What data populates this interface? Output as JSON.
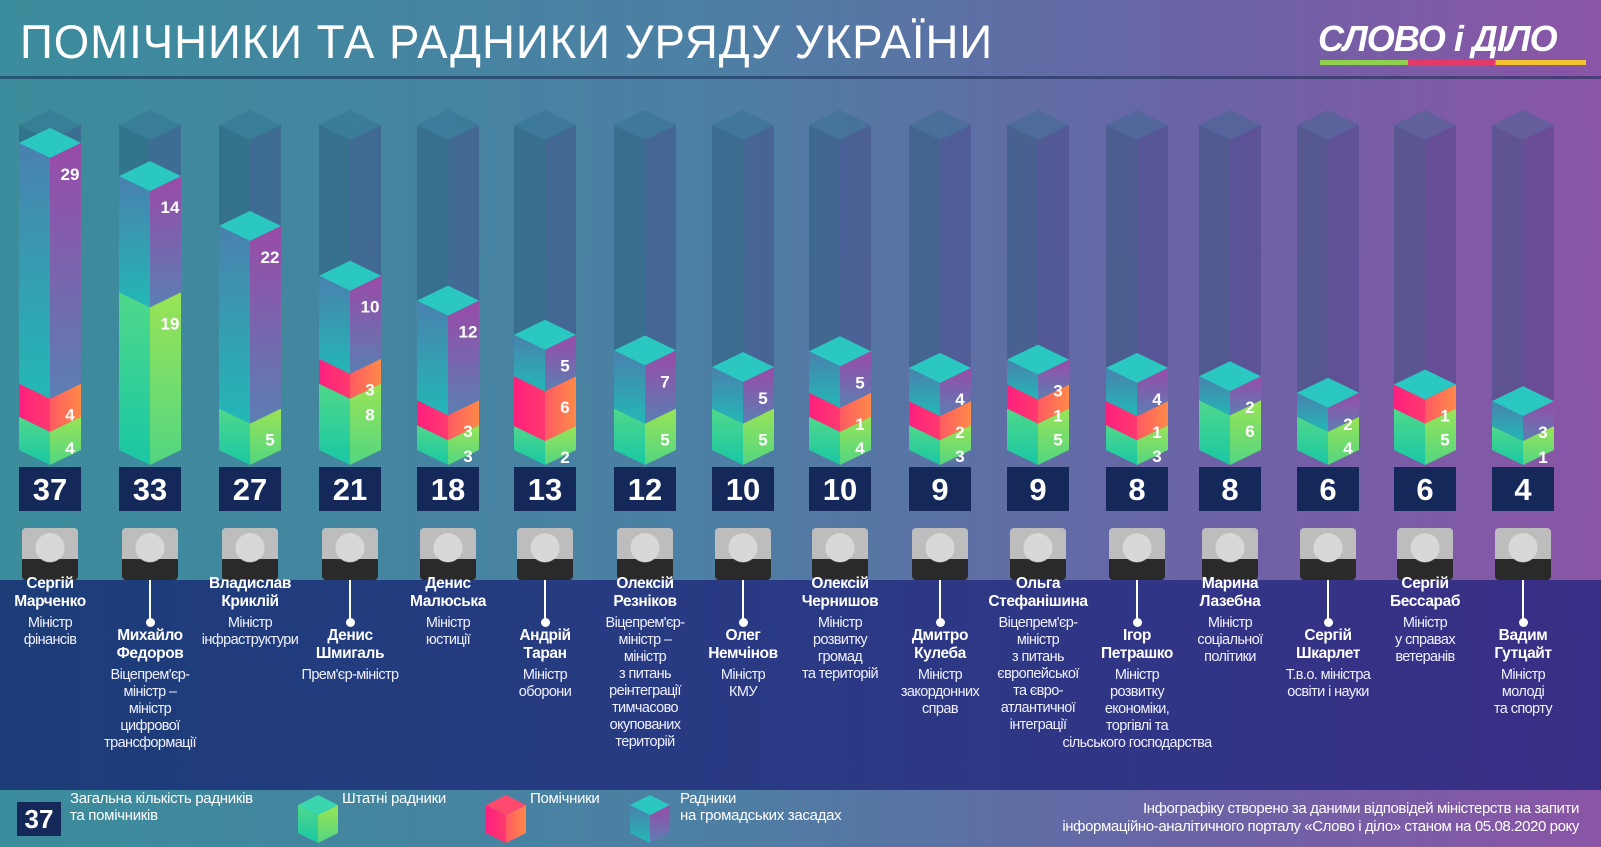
{
  "title": "ПОМІЧНИКИ ТА РАДНИКИ УРЯДУ УКРАЇНИ",
  "logo": "СЛОВО і ДІЛО",
  "colors": {
    "staff": "#5fd86f",
    "assistants": "#ff3f6e",
    "volunteers": "#7a5fae",
    "total_box": "#15285a"
  },
  "chart_data": {
    "type": "bar",
    "stacked": true,
    "categories": [
      "Сергій\nМарченко",
      "Михайло\nФедоров",
      "Владислав\nКриклій",
      "Денис\nШмигаль",
      "Денис\nМалюська",
      "Андрій\nТаран",
      "Олексій\nРезніков",
      "Олег\nНемчінов",
      "Олексій\nЧернишов",
      "Дмитро\nКулеба",
      "Ольга\nСтефанішина",
      "Ігор\nПетрашко",
      "Марина\nЛазебна",
      "Сергій\nШкарлет",
      "Сергій\nБессараб",
      "Вадим\nГутцайт"
    ],
    "series": [
      {
        "name": "Штатні радники",
        "values": [
          4,
          19,
          5,
          8,
          3,
          2,
          5,
          5,
          4,
          3,
          5,
          3,
          6,
          4,
          5,
          1
        ]
      },
      {
        "name": "Помічники",
        "values": [
          4,
          0,
          0,
          3,
          3,
          6,
          0,
          0,
          1,
          2,
          1,
          1,
          0,
          0,
          1,
          0
        ]
      },
      {
        "name": "Радники на громадських засадах",
        "values": [
          29,
          14,
          22,
          10,
          12,
          5,
          7,
          5,
          5,
          4,
          3,
          4,
          2,
          2,
          0,
          3
        ]
      }
    ],
    "totals": [
      37,
      33,
      27,
      21,
      18,
      13,
      12,
      10,
      10,
      9,
      9,
      8,
      8,
      6,
      6,
      4
    ]
  },
  "roles": [
    "Міністр\nфінансів",
    "Віцепрем'єр-\nміністр –\nміністр\nцифрової\nтрансформації",
    "Міністр\nінфраструктури",
    "Прем'єр-міністр",
    "Міністр\nюстиції",
    "Міністр\nоборони",
    "Віцепрем'єр-\nміністр –\nміністр\nз питань\nреінтеграції\nтимчасово\nокупованих\nтериторій",
    "Міністр\nКМУ",
    "Міністр\nрозвитку\nгромад\nта територій",
    "Міністр\nзакордонних\nсправ",
    "Віцепрем'єр-\nміністр\nз питань\nєвропейської\nта євро-\nатлантичної\nінтеграції",
    "Міністр\nрозвитку\nекономіки,\nторгівлі та\nсільського господарства",
    "Міністр\nсоціальної\nполітики",
    "Т.в.о. міністра\nосвіти і науки",
    "Міністр\nу справах\nветеранів",
    "Міністр\nмолоді\nта спорту"
  ],
  "legend": {
    "total_sample": "37",
    "total_label": "Загальна кількість радників\nта помічників",
    "staff": "Штатні радники",
    "assistants": "Помічники",
    "volunteers": "Радники\nна громадських засадах"
  },
  "footnote": "Інфографіку створено за даними відповідей міністерств на запити\nінформаційно-аналітичного порталу «Слово і діло» станом на 05.08.2020 року"
}
